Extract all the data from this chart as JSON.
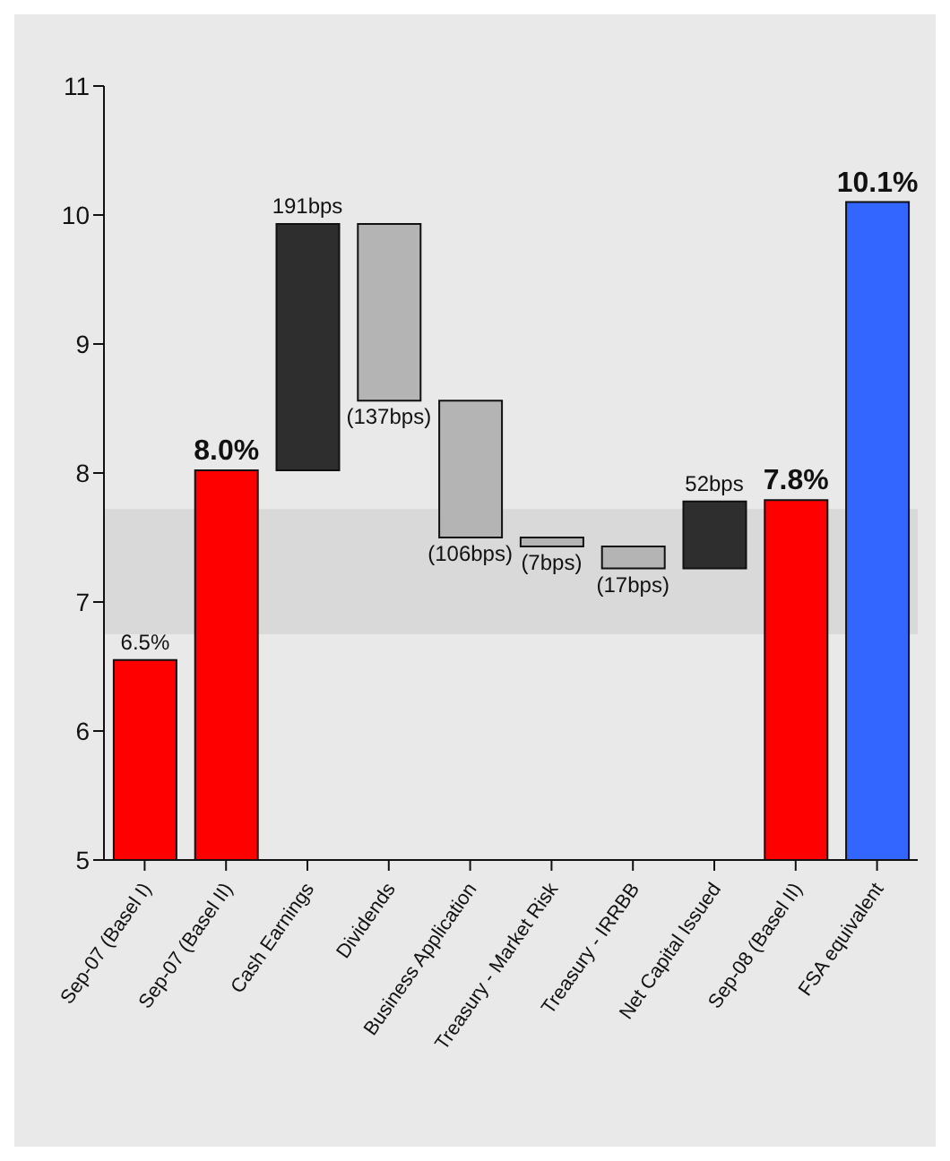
{
  "chart_data": {
    "type": "bar",
    "categories": [
      "Sep-07 (Basel I)",
      "Sep-07 (Basel II)",
      "Cash Earnings",
      "Dividends",
      "Business Application",
      "Treasury - Market Risk",
      "Treasury - IRRBB",
      "Net Capital Issued",
      "Sep-08 (Basel II)",
      "FSA equivalent"
    ],
    "base": [
      0,
      0,
      8.02,
      9.93,
      8.56,
      7.5,
      7.43,
      7.26,
      0,
      0
    ],
    "values": [
      6.55,
      8.02,
      1.91,
      -1.37,
      -1.06,
      -0.07,
      -0.17,
      0.52,
      7.79,
      10.1
    ],
    "colors": [
      "#ff0000",
      "#ff0000",
      "#2e2e2e",
      "#b4b4b4",
      "#b4b4b4",
      "#b4b4b4",
      "#b4b4b4",
      "#2e2e2e",
      "#ff0000",
      "#3366ff"
    ],
    "value_labels": [
      "6.5%",
      "8.0%",
      null,
      null,
      null,
      null,
      null,
      null,
      "7.8%",
      "10.1%"
    ],
    "annotations": [
      {
        "text": "191bps",
        "x": "Cash Earnings",
        "y": 9.93
      },
      {
        "text": "(137bps)",
        "x": "Dividends",
        "y": 8.56
      },
      {
        "text": "(106bps)",
        "x": "Business Application",
        "y": 7.5
      },
      {
        "text": "(7bps)",
        "x": "Treasury - Market Risk",
        "y": 7.43
      },
      {
        "text": "(17bps)",
        "x": "Treasury - IRRBB",
        "y": 7.26
      },
      {
        "text": "52bps",
        "x": "Net Capital Issued",
        "y": 7.78
      }
    ],
    "ylim": [
      5,
      11
    ],
    "yticks": [
      5,
      6,
      7,
      8,
      9,
      10,
      11
    ],
    "bands": [
      {
        "axis": "y",
        "from": 6.75,
        "to": 7.72,
        "color": "#d9d9d9"
      }
    ],
    "grid": false
  }
}
